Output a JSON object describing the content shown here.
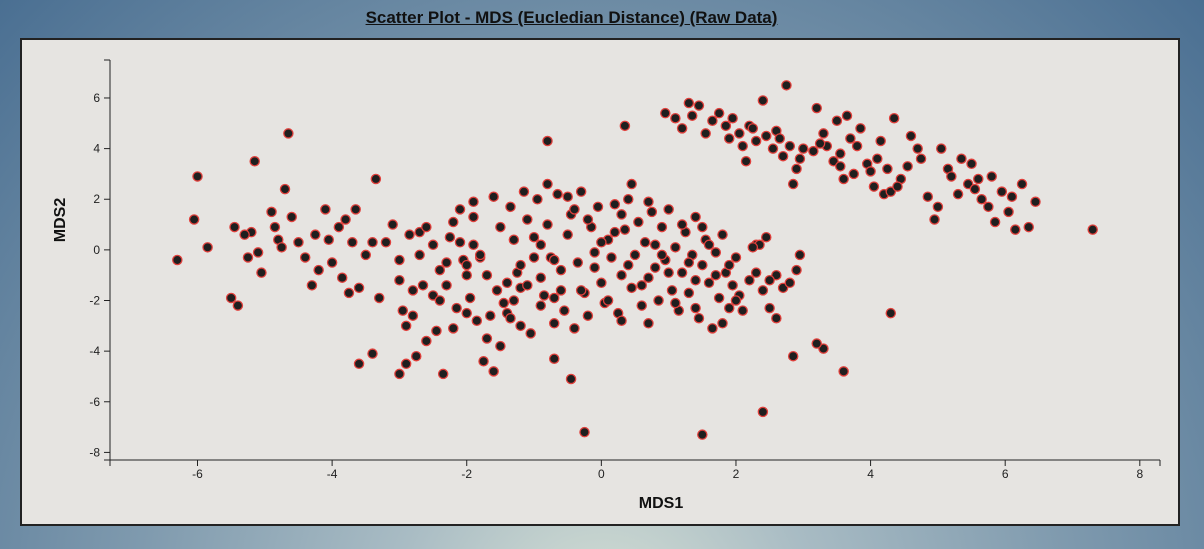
{
  "chart_data": {
    "type": "scatter",
    "title": "Scatter Plot - MDS (Eucledian Distance) (Raw Data)",
    "xlabel": "MDS1",
    "ylabel": "MDS2",
    "xlim": [
      -7.3,
      8.3
    ],
    "ylim": [
      -8.3,
      7.5
    ],
    "xticks": [
      -6,
      -4,
      -2,
      0,
      2,
      4,
      6,
      8
    ],
    "yticks": [
      -8,
      -6,
      -4,
      -2,
      0,
      2,
      4,
      6
    ],
    "grid": false,
    "marker": {
      "fill": "#1f1f1f",
      "stroke": "#e0403c"
    },
    "series": [
      {
        "points": [
          [
            -6.3,
            -0.4
          ],
          [
            -6.0,
            2.9
          ],
          [
            -6.05,
            1.2
          ],
          [
            -5.85,
            0.1
          ],
          [
            -5.5,
            -1.9
          ],
          [
            -5.4,
            -2.2
          ],
          [
            -5.45,
            0.9
          ],
          [
            -5.15,
            3.5
          ],
          [
            -5.2,
            0.7
          ],
          [
            -5.1,
            -0.1
          ],
          [
            -5.3,
            0.6
          ],
          [
            -5.25,
            -0.3
          ],
          [
            -5.05,
            -0.9
          ],
          [
            -4.9,
            1.5
          ],
          [
            -4.85,
            0.9
          ],
          [
            -4.8,
            0.4
          ],
          [
            -4.75,
            0.1
          ],
          [
            -4.7,
            2.4
          ],
          [
            -4.65,
            4.6
          ],
          [
            -4.6,
            1.3
          ],
          [
            -4.5,
            0.3
          ],
          [
            -4.4,
            -0.3
          ],
          [
            -4.3,
            -1.4
          ],
          [
            -4.25,
            0.6
          ],
          [
            -4.2,
            -0.8
          ],
          [
            -4.1,
            1.6
          ],
          [
            -4.05,
            0.4
          ],
          [
            -4.0,
            -0.5
          ],
          [
            -3.9,
            0.9
          ],
          [
            -3.85,
            -1.1
          ],
          [
            -3.8,
            1.2
          ],
          [
            -3.75,
            -1.7
          ],
          [
            -3.7,
            0.3
          ],
          [
            -3.65,
            1.6
          ],
          [
            -3.6,
            -1.5
          ],
          [
            -3.5,
            -0.2
          ],
          [
            -3.4,
            0.3
          ],
          [
            -3.35,
            2.8
          ],
          [
            -3.3,
            -1.9
          ],
          [
            -3.2,
            0.3
          ],
          [
            -3.1,
            1.0
          ],
          [
            -3.0,
            -1.2
          ],
          [
            -2.95,
            -2.4
          ],
          [
            -2.9,
            -4.5
          ],
          [
            -2.85,
            0.6
          ],
          [
            -2.8,
            -2.6
          ],
          [
            -2.75,
            -4.2
          ],
          [
            -2.7,
            0.7
          ],
          [
            -2.65,
            -1.4
          ],
          [
            -2.6,
            -3.6
          ],
          [
            -2.5,
            -1.8
          ],
          [
            -2.45,
            -3.2
          ],
          [
            -2.4,
            -2.0
          ],
          [
            -2.35,
            -4.9
          ],
          [
            -2.3,
            -1.4
          ],
          [
            -2.25,
            0.5
          ],
          [
            -2.2,
            -3.1
          ],
          [
            -2.15,
            -2.3
          ],
          [
            -2.1,
            1.6
          ],
          [
            -2.05,
            -0.4
          ],
          [
            -2.0,
            -0.6
          ],
          [
            -1.95,
            -1.9
          ],
          [
            -1.9,
            1.3
          ],
          [
            -1.85,
            -2.8
          ],
          [
            -1.8,
            -0.3
          ],
          [
            -1.75,
            -4.4
          ],
          [
            -1.7,
            -3.5
          ],
          [
            -1.65,
            -2.6
          ],
          [
            -1.6,
            -4.8
          ],
          [
            -1.55,
            -1.6
          ],
          [
            -1.5,
            -3.8
          ],
          [
            -1.45,
            -2.1
          ],
          [
            -1.4,
            -2.5
          ],
          [
            -1.35,
            -2.7
          ],
          [
            -1.3,
            0.4
          ],
          [
            -1.25,
            -0.9
          ],
          [
            -1.2,
            -1.5
          ],
          [
            -1.15,
            2.3
          ],
          [
            -1.1,
            -1.4
          ],
          [
            -1.05,
            -3.3
          ],
          [
            -1.0,
            0.5
          ],
          [
            -0.95,
            2.0
          ],
          [
            -0.9,
            -2.2
          ],
          [
            -0.85,
            -1.8
          ],
          [
            -0.8,
            1.0
          ],
          [
            -0.75,
            -0.3
          ],
          [
            -0.7,
            -2.9
          ],
          [
            -0.65,
            2.2
          ],
          [
            -0.6,
            -1.6
          ],
          [
            -0.55,
            -2.4
          ],
          [
            -0.5,
            0.6
          ],
          [
            -0.45,
            1.4
          ],
          [
            -0.4,
            -3.1
          ],
          [
            -0.35,
            -0.5
          ],
          [
            -0.3,
            2.3
          ],
          [
            -0.25,
            -1.7
          ],
          [
            -0.2,
            -2.6
          ],
          [
            -0.15,
            0.9
          ],
          [
            -0.1,
            -0.7
          ],
          [
            -0.05,
            1.7
          ],
          [
            0.0,
            -1.3
          ],
          [
            0.05,
            -2.1
          ],
          [
            0.1,
            0.4
          ],
          [
            0.15,
            -0.3
          ],
          [
            0.2,
            1.8
          ],
          [
            0.25,
            -2.5
          ],
          [
            0.3,
            -1.0
          ],
          [
            0.35,
            0.8
          ],
          [
            0.4,
            2.0
          ],
          [
            0.45,
            -1.5
          ],
          [
            0.5,
            -0.2
          ],
          [
            0.55,
            1.1
          ],
          [
            0.6,
            -2.2
          ],
          [
            0.65,
            0.3
          ],
          [
            0.7,
            -1.1
          ],
          [
            0.75,
            1.5
          ],
          [
            0.8,
            -0.7
          ],
          [
            0.85,
            -2.0
          ],
          [
            0.9,
            0.9
          ],
          [
            0.95,
            -0.4
          ],
          [
            1.0,
            1.6
          ],
          [
            1.05,
            -1.6
          ],
          [
            1.1,
            0.1
          ],
          [
            1.15,
            -2.4
          ],
          [
            1.2,
            -0.9
          ],
          [
            1.25,
            0.7
          ],
          [
            1.3,
            -1.7
          ],
          [
            1.35,
            -0.2
          ],
          [
            1.4,
            1.3
          ],
          [
            1.45,
            -2.7
          ],
          [
            1.5,
            -0.6
          ],
          [
            1.55,
            0.4
          ],
          [
            1.6,
            -1.3
          ],
          [
            1.65,
            -3.1
          ],
          [
            1.7,
            -0.1
          ],
          [
            1.75,
            -1.9
          ],
          [
            1.8,
            0.6
          ],
          [
            1.85,
            -0.9
          ],
          [
            1.9,
            -2.3
          ],
          [
            1.95,
            -1.4
          ],
          [
            2.0,
            -0.3
          ],
          [
            2.05,
            -1.8
          ],
          [
            2.1,
            -2.4
          ],
          [
            2.2,
            -1.2
          ],
          [
            2.3,
            0.2
          ],
          [
            2.4,
            -1.6
          ],
          [
            2.5,
            -2.3
          ],
          [
            2.6,
            -1.0
          ],
          [
            2.7,
            -1.5
          ],
          [
            -2.2,
            1.1
          ],
          [
            -1.9,
            0.2
          ],
          [
            -1.6,
            2.1
          ],
          [
            -1.35,
            1.7
          ],
          [
            -1.1,
            1.2
          ],
          [
            -0.8,
            2.6
          ],
          [
            -0.5,
            2.1
          ],
          [
            0.3,
            1.4
          ],
          [
            0.7,
            1.9
          ],
          [
            1.2,
            1.0
          ],
          [
            1.6,
            0.2
          ],
          [
            -0.2,
            1.2
          ],
          [
            -1.7,
            -1.0
          ],
          [
            -1.4,
            -1.3
          ],
          [
            -0.9,
            -1.1
          ],
          [
            -0.6,
            -0.8
          ],
          [
            -0.3,
            -1.6
          ],
          [
            0.1,
            -2.0
          ],
          [
            0.6,
            -1.4
          ],
          [
            1.0,
            -0.9
          ],
          [
            1.3,
            -0.5
          ],
          [
            1.7,
            -1.0
          ],
          [
            -2.6,
            0.9
          ],
          [
            -2.4,
            -0.8
          ],
          [
            -1.9,
            1.9
          ],
          [
            -1.2,
            -0.6
          ],
          [
            -0.7,
            -0.4
          ],
          [
            -0.1,
            -0.1
          ],
          [
            0.4,
            -0.6
          ],
          [
            0.9,
            -0.2
          ],
          [
            1.4,
            -1.2
          ],
          [
            1.9,
            -0.6
          ],
          [
            2.3,
            -0.9
          ],
          [
            -1.5,
            0.9
          ],
          [
            -0.4,
            1.6
          ],
          [
            0.2,
            0.7
          ],
          [
            -3.0,
            -0.4
          ],
          [
            -2.7,
            -0.2
          ],
          [
            -2.5,
            0.2
          ],
          [
            -2.3,
            -0.5
          ],
          [
            -2.1,
            0.3
          ],
          [
            -1.8,
            -0.2
          ],
          [
            -1.0,
            -0.3
          ],
          [
            0.0,
            0.3
          ],
          [
            0.8,
            0.2
          ],
          [
            1.5,
            0.9
          ],
          [
            2.0,
            -2.0
          ],
          [
            -0.9,
            0.2
          ],
          [
            -2.8,
            -1.6
          ],
          [
            -2.0,
            -1.0
          ],
          [
            -1.3,
            -2.0
          ],
          [
            -0.7,
            -1.9
          ],
          [
            0.3,
            -2.8
          ],
          [
            0.7,
            -2.9
          ],
          [
            1.1,
            -2.1
          ],
          [
            1.4,
            -2.3
          ],
          [
            1.8,
            -2.9
          ],
          [
            -2.9,
            -3.0
          ],
          [
            -2.0,
            -2.5
          ],
          [
            -1.2,
            -3.0
          ],
          [
            2.35,
            0.2
          ],
          [
            2.25,
            0.1
          ],
          [
            2.45,
            0.5
          ],
          [
            2.5,
            -1.2
          ],
          [
            2.6,
            -2.7
          ],
          [
            2.8,
            -1.3
          ],
          [
            2.9,
            -0.8
          ],
          [
            2.95,
            -0.2
          ],
          [
            2.85,
            -4.2
          ],
          [
            3.3,
            -3.9
          ],
          [
            3.6,
            -4.8
          ],
          [
            3.2,
            -3.7
          ],
          [
            2.4,
            -6.4
          ],
          [
            1.5,
            -7.3
          ],
          [
            -0.25,
            -7.2
          ],
          [
            -0.45,
            -5.1
          ],
          [
            -0.7,
            -4.3
          ],
          [
            -3.6,
            -4.5
          ],
          [
            -3.4,
            -4.1
          ],
          [
            -3.0,
            -4.9
          ],
          [
            4.3,
            -2.5
          ],
          [
            -0.8,
            4.3
          ],
          [
            0.35,
            4.9
          ],
          [
            0.45,
            2.6
          ],
          [
            0.95,
            5.4
          ],
          [
            1.1,
            5.2
          ],
          [
            1.2,
            4.8
          ],
          [
            1.3,
            5.8
          ],
          [
            1.35,
            5.3
          ],
          [
            1.45,
            5.7
          ],
          [
            1.55,
            4.6
          ],
          [
            1.65,
            5.1
          ],
          [
            1.75,
            5.4
          ],
          [
            1.85,
            4.9
          ],
          [
            1.95,
            5.2
          ],
          [
            2.05,
            4.6
          ],
          [
            2.1,
            4.1
          ],
          [
            2.15,
            3.5
          ],
          [
            2.2,
            4.9
          ],
          [
            2.3,
            4.3
          ],
          [
            2.4,
            5.9
          ],
          [
            2.45,
            4.5
          ],
          [
            2.55,
            4.0
          ],
          [
            2.6,
            4.7
          ],
          [
            2.7,
            3.7
          ],
          [
            2.75,
            6.5
          ],
          [
            2.8,
            4.1
          ],
          [
            2.85,
            2.6
          ],
          [
            2.9,
            3.2
          ],
          [
            3.0,
            4.0
          ],
          [
            3.15,
            3.9
          ],
          [
            3.2,
            5.6
          ],
          [
            3.3,
            4.6
          ],
          [
            3.35,
            4.1
          ],
          [
            3.45,
            3.5
          ],
          [
            3.5,
            5.1
          ],
          [
            3.55,
            3.8
          ],
          [
            3.6,
            2.8
          ],
          [
            3.65,
            5.3
          ],
          [
            3.7,
            4.4
          ],
          [
            3.75,
            3.0
          ],
          [
            3.85,
            4.8
          ],
          [
            3.95,
            3.4
          ],
          [
            4.0,
            3.1
          ],
          [
            4.05,
            2.5
          ],
          [
            4.15,
            4.3
          ],
          [
            4.2,
            2.2
          ],
          [
            4.25,
            3.2
          ],
          [
            4.3,
            2.3
          ],
          [
            4.35,
            5.2
          ],
          [
            4.45,
            2.8
          ],
          [
            4.55,
            3.3
          ],
          [
            4.6,
            4.5
          ],
          [
            4.7,
            4.0
          ],
          [
            4.75,
            3.6
          ],
          [
            4.85,
            2.1
          ],
          [
            4.95,
            1.2
          ],
          [
            5.0,
            1.7
          ],
          [
            5.05,
            4.0
          ],
          [
            5.15,
            3.2
          ],
          [
            5.2,
            2.9
          ],
          [
            5.3,
            2.2
          ],
          [
            5.35,
            3.6
          ],
          [
            5.45,
            2.6
          ],
          [
            5.5,
            3.4
          ],
          [
            5.6,
            2.8
          ],
          [
            5.65,
            2.0
          ],
          [
            5.75,
            1.7
          ],
          [
            5.8,
            2.9
          ],
          [
            5.85,
            1.1
          ],
          [
            5.95,
            2.3
          ],
          [
            6.05,
            1.5
          ],
          [
            6.1,
            2.1
          ],
          [
            6.15,
            0.8
          ],
          [
            6.25,
            2.6
          ],
          [
            6.35,
            0.9
          ],
          [
            6.45,
            1.9
          ],
          [
            7.3,
            0.8
          ],
          [
            3.55,
            3.3
          ],
          [
            3.25,
            4.2
          ],
          [
            2.95,
            3.6
          ],
          [
            2.65,
            4.4
          ],
          [
            2.25,
            4.8
          ],
          [
            1.9,
            4.4
          ],
          [
            3.8,
            4.1
          ],
          [
            4.1,
            3.6
          ],
          [
            4.4,
            2.5
          ],
          [
            5.55,
            2.4
          ]
        ]
      }
    ]
  }
}
